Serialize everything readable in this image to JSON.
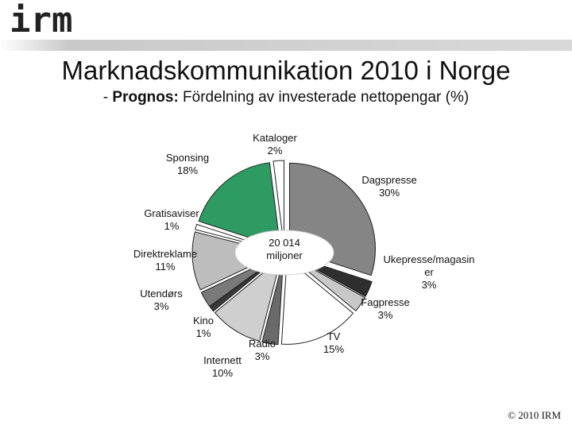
{
  "header": {
    "logo_text": "irm",
    "title": "Marknadskommunikation 2010 i Norge",
    "subtitle_prefix": "- ",
    "subtitle_bold": "Prognos:",
    "subtitle_rest": " Fördelning av investerade nettopengar (%)"
  },
  "chart_data": {
    "type": "pie",
    "title": "Marknadskommunikation 2010 i Norge",
    "subtitle": "- Prognos: Fördelning av investerade nettopengar (%)",
    "center_label": [
      "20 014",
      "miljoner"
    ],
    "slices": [
      {
        "name": "Dagspresse",
        "label_lines": [
          "Dagspresse",
          "30%"
        ],
        "value": 30,
        "color": "#858585"
      },
      {
        "name": "Ukepresse/magasiner",
        "label_lines": [
          "Ukepresse/magasin",
          "er",
          "3%"
        ],
        "value": 3,
        "color": "#2e2e2e"
      },
      {
        "name": "Fagpresse",
        "label_lines": [
          "Fagpresse",
          "3%"
        ],
        "value": 3,
        "color": "#c8c8c8"
      },
      {
        "name": "TV",
        "label_lines": [
          "TV",
          "15%"
        ],
        "value": 15,
        "color": "#ffffff"
      },
      {
        "name": "Radio",
        "label_lines": [
          "Radio",
          "3%"
        ],
        "value": 3,
        "color": "#6a6a6a"
      },
      {
        "name": "Internett",
        "label_lines": [
          "Internett",
          "10%"
        ],
        "value": 10,
        "color": "#cfcfcf"
      },
      {
        "name": "Kino",
        "label_lines": [
          "Kino",
          "1%"
        ],
        "value": 1,
        "color": "#3a3a3a"
      },
      {
        "name": "Utendørs",
        "label_lines": [
          "Utendørs",
          "3%"
        ],
        "value": 3,
        "color": "#7a7a7a"
      },
      {
        "name": "Direktreklame",
        "label_lines": [
          "Direktreklame",
          "11%"
        ],
        "value": 11,
        "color": "#bdbdbd"
      },
      {
        "name": "Gratisaviser",
        "label_lines": [
          "Gratisaviser",
          "1%"
        ],
        "value": 1,
        "color": "#ffffff"
      },
      {
        "name": "Sponsing",
        "label_lines": [
          "Sponsing",
          "18%"
        ],
        "value": 18,
        "color": "#2e9b63"
      },
      {
        "name": "Kataloger",
        "label_lines": [
          "Kataloger",
          "2%"
        ],
        "value": 2,
        "color": "#ffffff"
      }
    ]
  },
  "footer": {
    "copyright": "© 2010 IRM"
  }
}
